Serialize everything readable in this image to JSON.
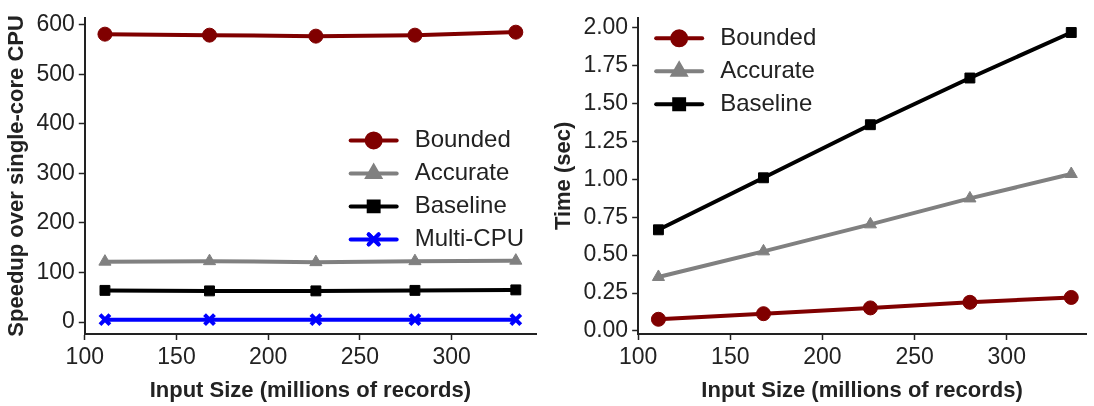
{
  "chart_data": [
    {
      "type": "line",
      "xlabel": "Input Size (millions of records)",
      "ylabel": "Speedup over single-core CPU",
      "xlim": [
        100,
        346
      ],
      "xticks": [
        100,
        150,
        200,
        250,
        300
      ],
      "ylim": [
        -24,
        614
      ],
      "yticks": [
        0,
        100,
        200,
        300,
        400,
        500,
        600
      ],
      "grid": false,
      "legend": "right",
      "line_style": "solid",
      "series": [
        {
          "name": "Bounded",
          "color": "#800000",
          "marker": "circle",
          "x": [
            111,
            168,
            226,
            280,
            335
          ],
          "values": [
            581,
            579,
            577,
            579,
            585
          ]
        },
        {
          "name": "Accurate",
          "color": "#808080",
          "marker": "triangle",
          "x": [
            111,
            168,
            226,
            280,
            335
          ],
          "values": [
            122,
            123,
            121,
            123,
            124
          ]
        },
        {
          "name": "Baseline",
          "color": "#000000",
          "marker": "square",
          "x": [
            111,
            168,
            226,
            280,
            335
          ],
          "values": [
            64,
            63,
            63,
            64,
            65
          ]
        },
        {
          "name": "Multi-CPU",
          "color": "#0000ff",
          "marker": "cross",
          "x": [
            111,
            168,
            226,
            280,
            335
          ],
          "values": [
            5,
            5,
            5,
            5,
            5
          ]
        }
      ]
    },
    {
      "type": "line",
      "xlabel": "Input Size (millions of records)",
      "ylabel": "Time (sec)",
      "xlim": [
        100,
        343
      ],
      "xticks": [
        100,
        150,
        200,
        250,
        300
      ],
      "ylim": [
        -0.02,
        2.065
      ],
      "yticks": [
        {
          "value": 0,
          "label": "0.00"
        },
        {
          "value": 0.25,
          "label": "0.25"
        },
        {
          "value": 0.5,
          "label": "0.50"
        },
        {
          "value": 0.75,
          "label": "0.75"
        },
        {
          "value": 1,
          "label": "1.00"
        },
        {
          "value": 1.25,
          "label": "1.25"
        },
        {
          "value": 1.5,
          "label": "1.50"
        },
        {
          "value": 1.75,
          "label": "1.75"
        },
        {
          "value": 2,
          "label": "2.00"
        }
      ],
      "grid": false,
      "legend": "top left",
      "line_style": "solid",
      "series": [
        {
          "name": "Bounded",
          "color": "#800000",
          "marker": "circle",
          "x": [
            111,
            168,
            226,
            280,
            335
          ],
          "values": [
            0.077,
            0.114,
            0.152,
            0.189,
            0.221
          ]
        },
        {
          "name": "Accurate",
          "color": "#808080",
          "marker": "triangle",
          "x": [
            111,
            168,
            226,
            280,
            335
          ],
          "values": [
            0.356,
            0.525,
            0.703,
            0.874,
            1.035
          ]
        },
        {
          "name": "Baseline",
          "color": "#000000",
          "marker": "square",
          "x": [
            111,
            168,
            226,
            280,
            335
          ],
          "values": [
            0.667,
            1.01,
            1.36,
            1.668,
            1.968
          ]
        }
      ]
    }
  ]
}
